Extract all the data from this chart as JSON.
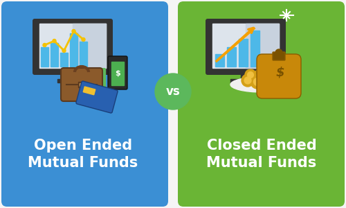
{
  "bg_color": "#f5f5f5",
  "left_bg": "#3b8fd4",
  "right_bg": "#6ab535",
  "vs_circle_color": "#5cb85c",
  "vs_text": "vs",
  "left_title_line1": "Open Ended",
  "left_title_line2": "Mutual Funds",
  "right_title_line1": "Closed Ended",
  "right_title_line2": "Mutual Funds",
  "title_color": "#ffffff",
  "monitor_dark": "#333333",
  "screen_bg": "#dde4ec",
  "screen_bg2": "#c8d2de",
  "bar_blue": "#4db8e8",
  "bar_blue2": "#3aa0d0",
  "line_yellow": "#f5c200",
  "arrow_orange": "#f5a000",
  "green_icon": "#5cb85c",
  "green_icon_dark": "#3d8b3d",
  "phone_dark": "#2a2a2a",
  "phone_screen": "#4caf50",
  "briefcase_main": "#8B5A2B",
  "briefcase_dark": "#5c3a1e",
  "briefcase_handle": "#6b4020",
  "coin_gold": "#d4a017",
  "coin_light": "#f0c040",
  "bag_main": "#c8880a",
  "bag_dark": "#8a5c00",
  "bag_tie": "#7a5200",
  "plate_white": "#f0f0f0",
  "card_blue": "#2860b0",
  "card_stripe": "#f0c030",
  "spark_color": "#ffffff"
}
